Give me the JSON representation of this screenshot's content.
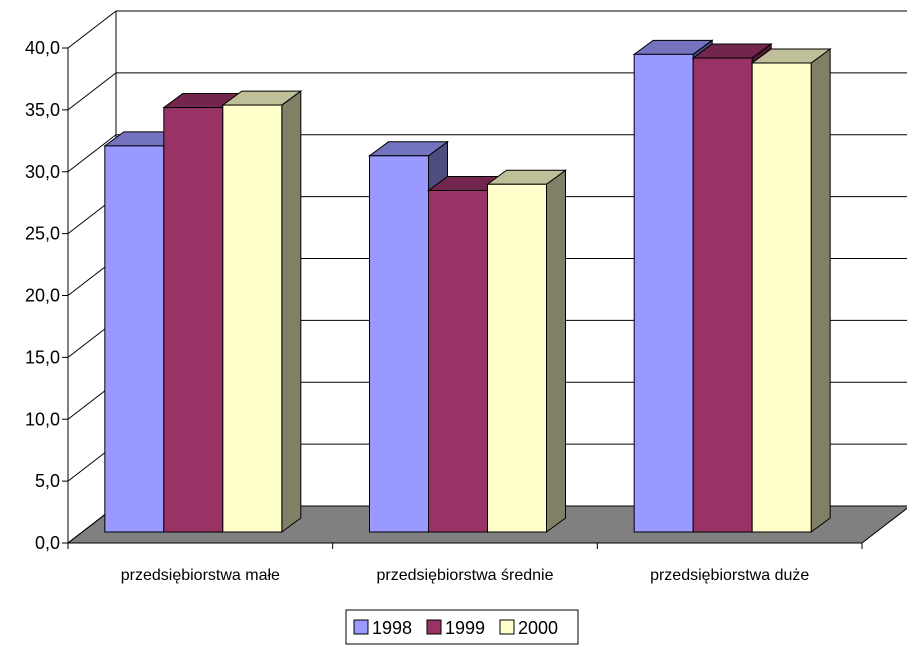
{
  "chart_data": {
    "type": "bar",
    "title": "",
    "xlabel": "",
    "ylabel": "",
    "ylim": [
      0,
      40
    ],
    "y_tick_step": 5,
    "y_tick_labels": [
      "0,0",
      "5,0",
      "10,0",
      "15,0",
      "20,0",
      "25,0",
      "30,0",
      "35,0",
      "40,0"
    ],
    "grid": true,
    "style": "3d-clustered-column",
    "legend_position": "bottom",
    "categories": [
      "przedsiębiorstwa małe",
      "przedsiębiorstwa średnie",
      "przedsiębiorstwa duże"
    ],
    "series": [
      {
        "name": "1998",
        "values": [
          31.2,
          30.4,
          38.6
        ],
        "color": "#9999ff"
      },
      {
        "name": "1999",
        "values": [
          34.3,
          27.6,
          38.3
        ],
        "color": "#993366"
      },
      {
        "name": "2000",
        "values": [
          34.5,
          28.1,
          37.9
        ],
        "color": "#ffffcc"
      }
    ],
    "colors": {
      "floor": "#808080",
      "bar_side_1998": "#4d4d80",
      "bar_side_1999": "#4d1a33",
      "bar_side_2000": "#808066"
    }
  }
}
